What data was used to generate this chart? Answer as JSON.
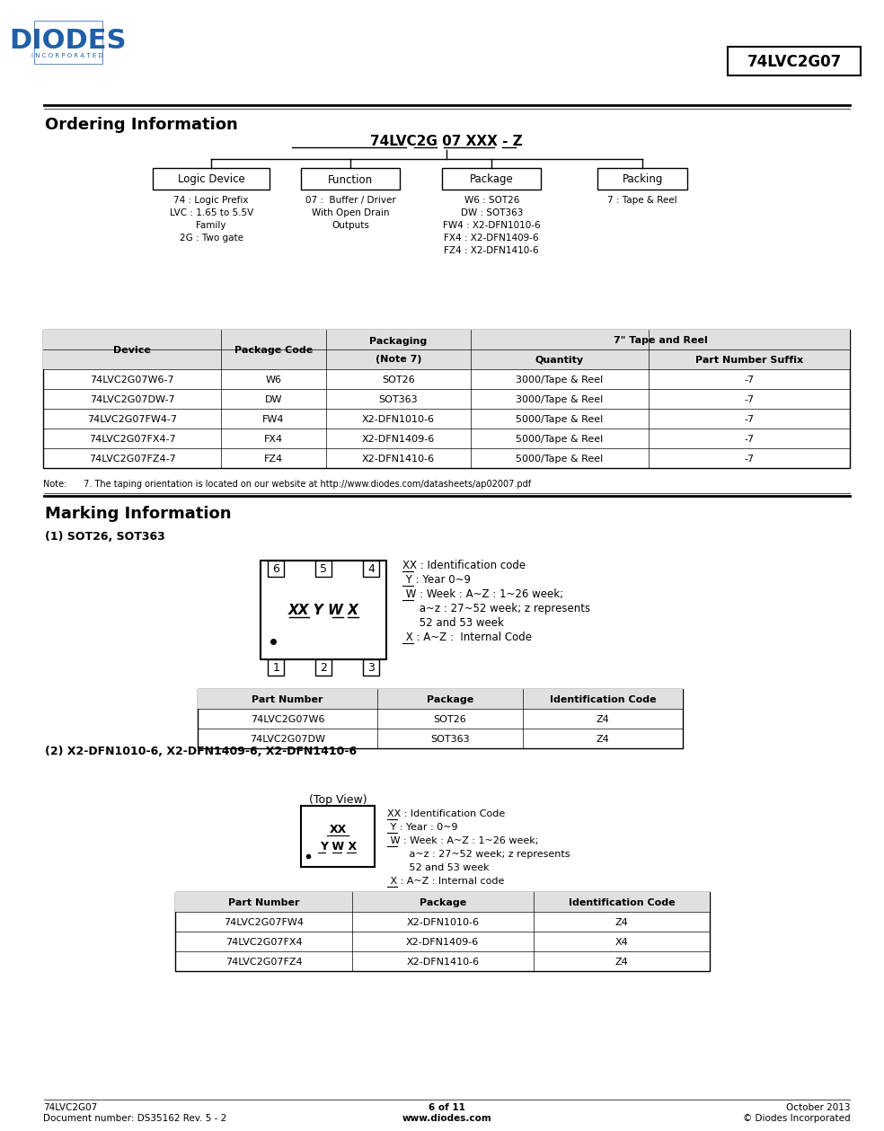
{
  "page_title": "74LVC2G07",
  "section1_title": "Ordering Information",
  "section2_title": "Marking Information",
  "tree_boxes": [
    "Logic Device",
    "Function",
    "Package",
    "Packing"
  ],
  "tree_desc": [
    "74 : Logic Prefix\nLVC : 1.65 to 5.5V\nFamily\n2G : Two gate",
    "07 :  Buffer / Driver\nWith Open Drain\nOutputs",
    "W6 : SOT26\nDW : SOT363\nFW4 : X2-DFN1010-6\nFX4 : X2-DFN1409-6\nFZ4 : X2-DFN1410-6",
    "7 : Tape & Reel"
  ],
  "table1_rows": [
    [
      "74LVC2G07W6-7",
      "W6",
      "SOT26",
      "3000/Tape & Reel",
      "-7"
    ],
    [
      "74LVC2G07DW-7",
      "DW",
      "SOT363",
      "3000/Tape & Reel",
      "-7"
    ],
    [
      "74LVC2G07FW4-7",
      "FW4",
      "X2-DFN1010-6",
      "5000/Tape & Reel",
      "-7"
    ],
    [
      "74LVC2G07FX4-7",
      "FX4",
      "X2-DFN1409-6",
      "5000/Tape & Reel",
      "-7"
    ],
    [
      "74LVC2G07FZ4-7",
      "FZ4",
      "X2-DFN1410-6",
      "5000/Tape & Reel",
      "-7"
    ]
  ],
  "note1": "Note:      7. The taping orientation is located on our website at http://www.diodes.com/datasheets/ap02007.pdf",
  "sot_subtitle": "(1) SOT26, SOT363",
  "sot_marking": "XX Y W X",
  "sot_pins_top": [
    "6",
    "5",
    "4"
  ],
  "sot_pins_bottom": [
    "1",
    "2",
    "3"
  ],
  "table2_headers": [
    "Part Number",
    "Package",
    "Identification Code"
  ],
  "table2_rows": [
    [
      "74LVC2G07W6",
      "SOT26",
      "Z4"
    ],
    [
      "74LVC2G07DW",
      "SOT363",
      "Z4"
    ]
  ],
  "dfn_subtitle": "(2) X2-DFN1010-6, X2-DFN1409-6, X2-DFN1410-6",
  "dfn_topview": "(Top View)",
  "dfn_marking_line1": "XX",
  "dfn_marking_line2": "Y W X",
  "table3_headers": [
    "Part Number",
    "Package",
    "Identification Code"
  ],
  "table3_rows": [
    [
      "74LVC2G07FW4",
      "X2-DFN1010-6",
      "Z4"
    ],
    [
      "74LVC2G07FX4",
      "X2-DFN1409-6",
      "X4"
    ],
    [
      "74LVC2G07FZ4",
      "X2-DFN1410-6",
      "Z4"
    ]
  ],
  "footer_left": "74LVC2G07\nDocument number: DS35162 Rev. 5 - 2",
  "footer_center": "6 of 11\nwww.diodes.com",
  "footer_right": "October 2013\n© Diodes Incorporated",
  "bg_color": "#ffffff",
  "blue_color": "#1f5fa6"
}
